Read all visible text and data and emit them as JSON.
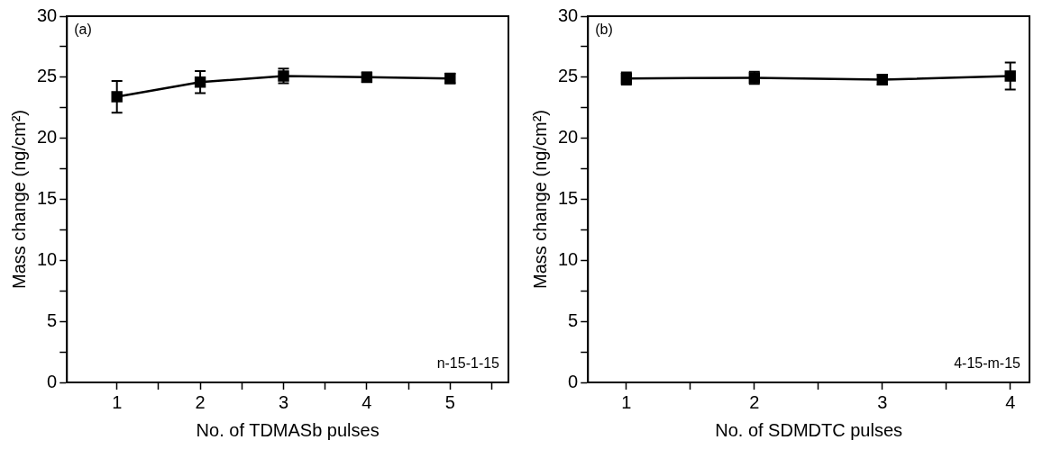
{
  "chart_data": [
    {
      "type": "line",
      "xlabel": "No. of TDMASb pulses",
      "ylabel": "Mass change (ng/cm²)",
      "annotations": [
        "(a)",
        "n-15-1-15"
      ],
      "x": [
        1,
        2,
        3,
        4,
        5
      ],
      "series": [
        {
          "color": "#000000",
          "values": [
            23.4,
            24.6,
            25.1,
            25.0,
            24.9
          ],
          "errors": [
            1.3,
            0.9,
            0.6,
            0.4,
            0.4
          ]
        }
      ],
      "xlim": [
        0.4,
        5.7
      ],
      "xticks": [
        1,
        {
          "value": 1.5,
          "label": null
        },
        2,
        {
          "value": 2.5,
          "label": null
        },
        3,
        {
          "value": 3.5,
          "label": null
        },
        4,
        {
          "value": 4.5,
          "label": null
        },
        5,
        {
          "value": 5.5,
          "label": null
        }
      ],
      "ylim": [
        0,
        30
      ],
      "yticks": [
        0,
        {
          "value": 2.5,
          "label": null
        },
        5,
        {
          "value": 7.5,
          "label": null
        },
        10,
        {
          "value": 12.5,
          "label": null
        },
        15,
        {
          "value": 17.5,
          "label": null
        },
        20,
        {
          "value": 22.5,
          "label": null
        },
        25,
        {
          "value": 27.5,
          "label": null
        },
        30
      ],
      "grid": false,
      "legend": false,
      "marker": "square",
      "line_style": "solid"
    },
    {
      "type": "line",
      "xlabel": "No. of SDMDTC pulses",
      "ylabel": "Mass change (ng/cm²)",
      "annotations": [
        "(b)",
        "4-15-m-15"
      ],
      "x": [
        1,
        2,
        3,
        4
      ],
      "series": [
        {
          "color": "#000000",
          "values": [
            24.9,
            24.95,
            24.8,
            25.1
          ],
          "errors": [
            0.5,
            0.5,
            0.4,
            1.1
          ]
        }
      ],
      "xlim": [
        0.7,
        4.15
      ],
      "xticks": [
        1,
        {
          "value": 1.5,
          "label": null
        },
        2,
        {
          "value": 2.5,
          "label": null
        },
        3,
        {
          "value": 3.5,
          "label": null
        },
        4
      ],
      "ylim": [
        0,
        30
      ],
      "yticks": [
        0,
        {
          "value": 2.5,
          "label": null
        },
        5,
        {
          "value": 7.5,
          "label": null
        },
        10,
        {
          "value": 12.5,
          "label": null
        },
        15,
        {
          "value": 17.5,
          "label": null
        },
        20,
        {
          "value": 22.5,
          "label": null
        },
        25,
        {
          "value": 27.5,
          "label": null
        },
        30
      ],
      "grid": false,
      "legend": false,
      "marker": "square",
      "line_style": "solid"
    }
  ]
}
